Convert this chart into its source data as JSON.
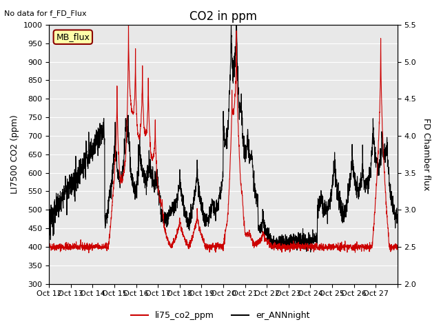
{
  "title": "CO2 in ppm",
  "top_left_text": "No data for f_FD_Flux",
  "ylabel_left": "LI7500 CO2 (ppm)",
  "ylabel_right": "FD Chamber flux",
  "ylim_left": [
    300,
    1000
  ],
  "ylim_right": [
    2.0,
    5.5
  ],
  "yticks_left": [
    300,
    350,
    400,
    450,
    500,
    550,
    600,
    650,
    700,
    750,
    800,
    850,
    900,
    950,
    1000
  ],
  "yticks_right": [
    2.0,
    2.5,
    3.0,
    3.5,
    4.0,
    4.5,
    5.0,
    5.5
  ],
  "xtick_positions": [
    0,
    1,
    2,
    3,
    4,
    5,
    6,
    7,
    8,
    9,
    10,
    11,
    12,
    13,
    14,
    15,
    16
  ],
  "xtick_labels": [
    "Oct 12",
    "Oct 13",
    "Oct 14",
    "Oct 15",
    "Oct 16",
    "Oct 17",
    "Oct 18",
    "Oct 19",
    "Oct 20",
    "Oct 21",
    "Oct 22",
    "Oct 23",
    "Oct 24",
    "Oct 25",
    "Oct 26",
    "Oct 27",
    ""
  ],
  "legend_labels": [
    "li75_co2_ppm",
    "er_ANNnight"
  ],
  "mb_flux_label": "MB_flux",
  "background_color": "#e8e8e8",
  "line_color_red": "#cc0000",
  "line_color_black": "#000000",
  "figsize": [
    6.4,
    4.8
  ],
  "dpi": 100
}
